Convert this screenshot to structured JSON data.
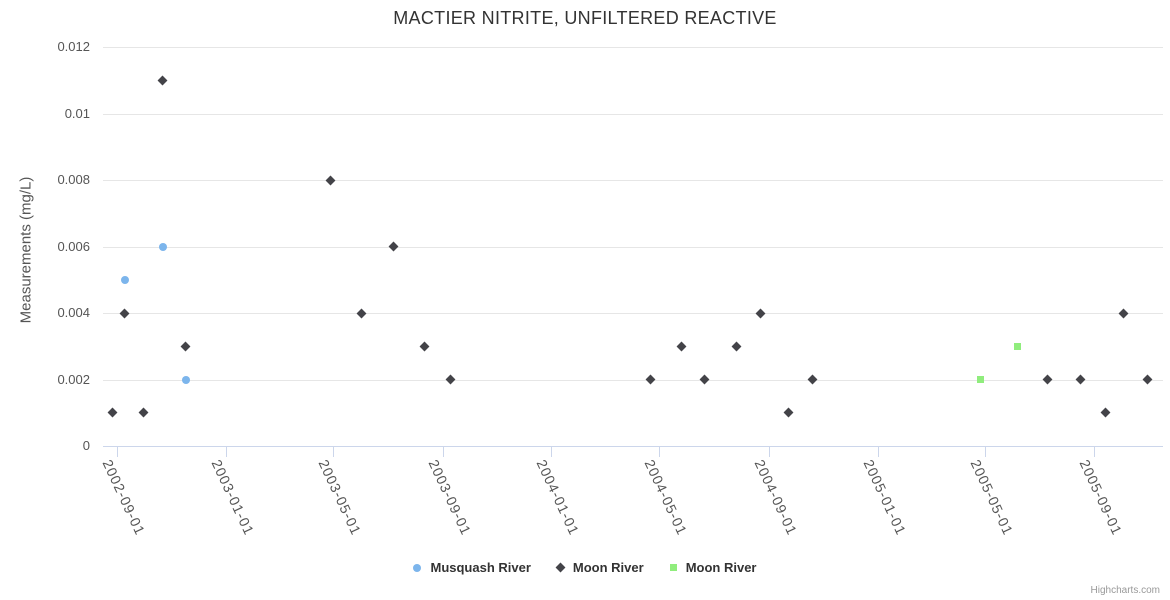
{
  "title": "MACTIER NITRITE, UNFILTERED REACTIVE",
  "credits": "Highcharts.com",
  "colors": {
    "grid": "#e6e6e6",
    "axis_line": "#ccd6eb",
    "title_text": "#333333",
    "axis_text": "#555555",
    "legend_text": "#333333",
    "credits_text": "#999999"
  },
  "chart_data": {
    "type": "scatter",
    "title": "MACTIER NITRITE, UNFILTERED REACTIVE",
    "xlabel": "",
    "ylabel": "Measurements (mg/L)",
    "ylim": [
      0,
      0.012
    ],
    "grid": true,
    "legend_position": "bottom",
    "x_range": [
      "2002-08-16",
      "2005-11-17"
    ],
    "x_ticks": [
      "2002-09-01",
      "2003-01-01",
      "2003-05-01",
      "2003-09-01",
      "2004-01-01",
      "2004-05-01",
      "2004-09-01",
      "2005-01-01",
      "2005-05-01",
      "2005-09-01"
    ],
    "y_ticks": [
      {
        "v": 0,
        "label": "0"
      },
      {
        "v": 0.002,
        "label": "0.002"
      },
      {
        "v": 0.004,
        "label": "0.004"
      },
      {
        "v": 0.006,
        "label": "0.006"
      },
      {
        "v": 0.008,
        "label": "0.008"
      },
      {
        "v": 0.01,
        "label": "0.01"
      },
      {
        "v": 0.012,
        "label": "0.012"
      }
    ],
    "series": [
      {
        "name": "Musquash River",
        "symbol": "circle",
        "color": "#7cb5ec",
        "points": [
          [
            "2002-09-10",
            0.005
          ],
          [
            "2002-10-22",
            0.006
          ],
          [
            "2002-11-17",
            0.002
          ]
        ]
      },
      {
        "name": "Moon River",
        "symbol": "diamond",
        "color": "#434348",
        "points": [
          [
            "2002-08-27",
            0.001
          ],
          [
            "2002-09-09",
            0.004
          ],
          [
            "2002-09-30",
            0.001
          ],
          [
            "2002-10-22",
            0.011
          ],
          [
            "2002-11-16",
            0.003
          ],
          [
            "2003-04-28",
            0.008
          ],
          [
            "2003-06-02",
            0.004
          ],
          [
            "2003-07-08",
            0.006
          ],
          [
            "2003-08-12",
            0.003
          ],
          [
            "2003-09-10",
            0.002
          ],
          [
            "2004-04-21",
            0.002
          ],
          [
            "2004-05-26",
            0.003
          ],
          [
            "2004-06-21",
            0.002
          ],
          [
            "2004-07-27",
            0.003
          ],
          [
            "2004-08-23",
            0.004
          ],
          [
            "2004-09-23",
            0.001
          ],
          [
            "2004-10-20",
            0.002
          ],
          [
            "2005-07-11",
            0.002
          ],
          [
            "2005-08-17",
            0.002
          ],
          [
            "2005-09-13",
            0.001
          ],
          [
            "2005-10-04",
            0.004
          ],
          [
            "2005-10-31",
            0.002
          ]
        ]
      },
      {
        "name": "Moon River",
        "symbol": "square",
        "color": "#90ed7d",
        "points": [
          [
            "2005-04-26",
            0.002
          ],
          [
            "2005-06-07",
            0.003
          ]
        ]
      }
    ]
  }
}
